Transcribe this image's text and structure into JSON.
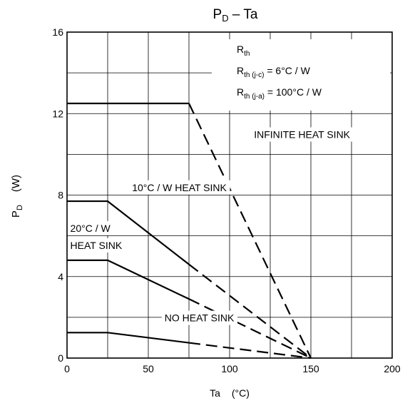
{
  "chart_data": {
    "type": "line",
    "title": "P",
    "title_sub": "D",
    "title_rest": " – Ta",
    "ylabel": "P",
    "ylabel_sub": "D",
    "ylabel_unit": "(W)",
    "xlabel": "Ta",
    "xlabel_unit": "(°C)",
    "xlim": [
      0,
      200
    ],
    "ylim": [
      0,
      16
    ],
    "x_ticks": [
      0,
      50,
      100,
      150,
      200
    ],
    "x_tick_labels": [
      "0",
      "50",
      "100",
      "150",
      "200"
    ],
    "y_ticks": [
      0,
      4,
      8,
      12,
      16
    ],
    "y_tick_labels": [
      "0",
      "4",
      "8",
      "12",
      "16"
    ],
    "x_grid": [
      0,
      25,
      50,
      75,
      100,
      125,
      150,
      175,
      200
    ],
    "y_grid": [
      0,
      2,
      4,
      6,
      8,
      10,
      12,
      14,
      16
    ],
    "grid": true,
    "series": [
      {
        "name": "INFINITE HEAT SINK",
        "solid": [
          [
            0,
            12.5
          ],
          [
            75,
            12.5
          ]
        ],
        "dashed": [
          [
            75,
            12.5
          ],
          [
            150,
            0
          ]
        ],
        "label_pos": [
          115,
          10.8
        ]
      },
      {
        "name": "10°C / W HEAT SINK",
        "solid": [
          [
            0,
            7.7
          ],
          [
            25,
            7.7
          ],
          [
            75,
            4.6
          ]
        ],
        "dashed": [
          [
            75,
            4.6
          ],
          [
            150,
            0
          ]
        ],
        "label_pos": [
          40,
          8.2
        ]
      },
      {
        "name": "20°C / W HEAT SINK",
        "label_lines": [
          "20°C / W",
          "HEAT SINK"
        ],
        "solid": [
          [
            0,
            4.8
          ],
          [
            25,
            4.8
          ],
          [
            75,
            2.9
          ]
        ],
        "dashed": [
          [
            75,
            2.9
          ],
          [
            150,
            0
          ]
        ],
        "label_pos": [
          2,
          6.2
        ]
      },
      {
        "name": "NO HEAT SINK",
        "solid": [
          [
            0,
            1.25
          ],
          [
            25,
            1.25
          ],
          [
            75,
            0.75
          ]
        ],
        "dashed": [
          [
            75,
            0.75
          ],
          [
            150,
            0
          ]
        ],
        "label_pos": [
          60,
          1.8
        ]
      }
    ],
    "annotations": {
      "rth": {
        "main": "R",
        "sub": "th"
      },
      "rth_jc": {
        "main": "R",
        "sub": "th (j-c)",
        "rest": " = 6°C / W"
      },
      "rth_ja": {
        "main": "R",
        "sub": "th (j-a)",
        "rest": " = 100°C / W"
      }
    }
  }
}
